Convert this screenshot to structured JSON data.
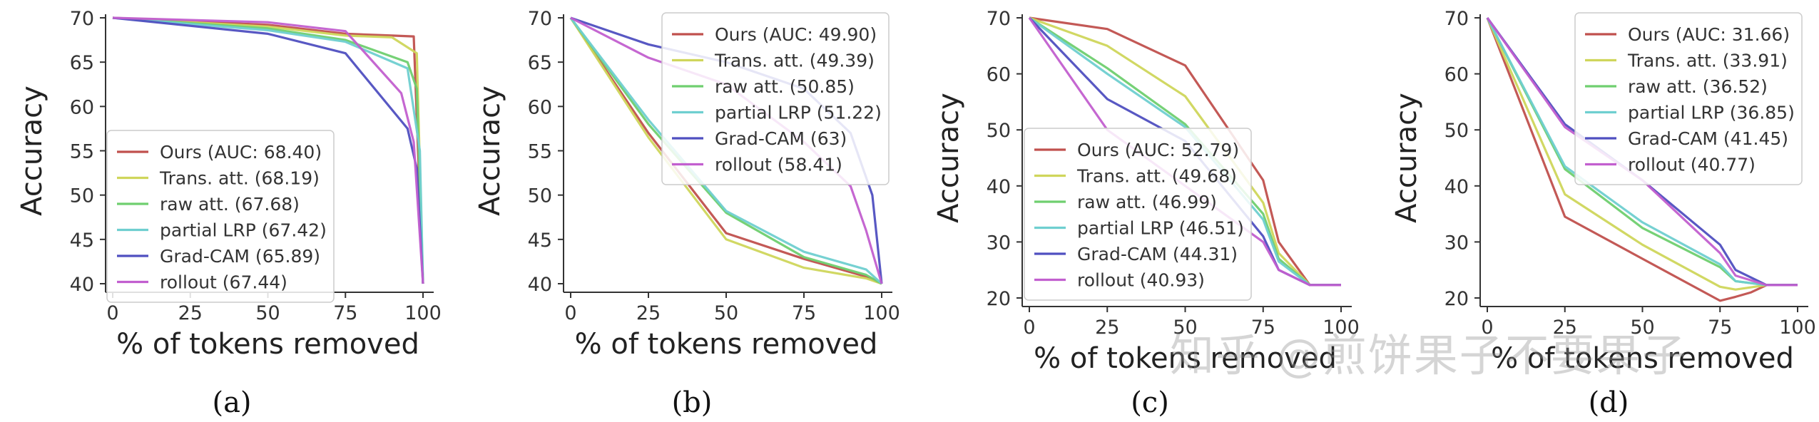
{
  "series_styles": {
    "Ours": "#c0504d",
    "Trans. att.": "#cfd65b",
    "raw att.": "#6fcf6f",
    "partial LRP": "#6fcfd0",
    "Grad-CAM": "#4f4fc0",
    "rollout": "#c25fcf"
  },
  "watermark_text": "知乎 @煎饼果子不要果子",
  "chart_data": [
    {
      "type": "line",
      "panel_label": "(a)",
      "xlabel": "% of tokens removed",
      "ylabel": "Accuracy",
      "xlim": [
        0,
        100
      ],
      "ylim": [
        40,
        70
      ],
      "xticks": [
        0,
        25,
        50,
        75,
        100
      ],
      "yticks": [
        40,
        45,
        50,
        55,
        60,
        65,
        70
      ],
      "legend_position": "bottom-left",
      "series": [
        {
          "name": "Ours",
          "label": "Ours (AUC: 68.40)",
          "x": [
            0,
            50,
            75,
            90,
            97,
            100
          ],
          "y": [
            70,
            69.2,
            68.2,
            68.0,
            67.9,
            40
          ]
        },
        {
          "name": "Trans. att.",
          "label": "Trans. att. (68.19)",
          "x": [
            0,
            50,
            75,
            90,
            98,
            100
          ],
          "y": [
            70,
            69.0,
            68.0,
            67.8,
            66.0,
            40
          ]
        },
        {
          "name": "raw att.",
          "label": "raw att. (67.68)",
          "x": [
            0,
            50,
            75,
            95,
            98,
            100
          ],
          "y": [
            70,
            68.8,
            67.5,
            65.0,
            62.0,
            40
          ]
        },
        {
          "name": "partial LRP",
          "label": "partial LRP (67.42)",
          "x": [
            0,
            50,
            75,
            95,
            99,
            100
          ],
          "y": [
            70,
            68.6,
            67.3,
            64.3,
            55.0,
            40
          ]
        },
        {
          "name": "Grad-CAM",
          "label": "Grad-CAM (65.89)",
          "x": [
            0,
            50,
            75,
            95,
            98,
            100
          ],
          "y": [
            70,
            68.2,
            66.0,
            57.5,
            53.0,
            40
          ]
        },
        {
          "name": "rollout",
          "label": "rollout (67.44)",
          "x": [
            0,
            50,
            75,
            93,
            97,
            100
          ],
          "y": [
            70,
            69.5,
            68.5,
            61.5,
            56.0,
            40
          ]
        }
      ]
    },
    {
      "type": "line",
      "panel_label": "(b)",
      "xlabel": "% of tokens removed",
      "ylabel": "Accuracy",
      "xlim": [
        0,
        100
      ],
      "ylim": [
        40,
        70
      ],
      "xticks": [
        0,
        25,
        50,
        75,
        100
      ],
      "yticks": [
        40,
        45,
        50,
        55,
        60,
        65,
        70
      ],
      "legend_position": "top-right",
      "series": [
        {
          "name": "Ours",
          "label": "Ours (AUC: 49.90)",
          "x": [
            0,
            25,
            50,
            75,
            95,
            100
          ],
          "y": [
            70,
            57,
            45.7,
            42.8,
            40.8,
            40
          ]
        },
        {
          "name": "Trans. att.",
          "label": "Trans. att. (49.39)",
          "x": [
            0,
            25,
            50,
            75,
            95,
            100
          ],
          "y": [
            70,
            56.5,
            45,
            41.8,
            40.6,
            40
          ]
        },
        {
          "name": "raw att.",
          "label": "raw att. (50.85)",
          "x": [
            0,
            25,
            50,
            75,
            95,
            100
          ],
          "y": [
            70,
            58,
            48,
            43.0,
            41.0,
            40
          ]
        },
        {
          "name": "partial LRP",
          "label": "partial LRP (51.22)",
          "x": [
            0,
            25,
            50,
            75,
            95,
            100
          ],
          "y": [
            70,
            58.5,
            48.2,
            43.6,
            41.6,
            40
          ]
        },
        {
          "name": "Grad-CAM",
          "label": "Grad-CAM (63)",
          "x": [
            0,
            25,
            50,
            75,
            90,
            97,
            100
          ],
          "y": [
            70,
            67,
            65,
            62,
            57,
            50,
            40
          ]
        },
        {
          "name": "rollout",
          "label": "rollout (58.41)",
          "x": [
            0,
            25,
            50,
            75,
            90,
            95,
            100
          ],
          "y": [
            70,
            65.5,
            62.5,
            56,
            51,
            46,
            40
          ]
        }
      ]
    },
    {
      "type": "line",
      "panel_label": "(c)",
      "xlabel": "% of tokens removed",
      "ylabel": "Accuracy",
      "xlim": [
        0,
        100
      ],
      "ylim": [
        20,
        70
      ],
      "xticks": [
        0,
        25,
        50,
        75,
        100
      ],
      "yticks": [
        20,
        30,
        40,
        50,
        60,
        70
      ],
      "legend_position": "bottom-left",
      "series": [
        {
          "name": "Ours",
          "label": "Ours (AUC: 52.79)",
          "x": [
            0,
            25,
            50,
            75,
            80,
            90,
            100
          ],
          "y": [
            70,
            68,
            61.5,
            41,
            30,
            22.3,
            22.3
          ]
        },
        {
          "name": "Trans. att.",
          "label": "Trans. att. (49.68)",
          "x": [
            0,
            25,
            50,
            75,
            80,
            90,
            100
          ],
          "y": [
            70,
            65,
            56,
            37,
            28,
            22.3,
            22.3
          ]
        },
        {
          "name": "raw att.",
          "label": "raw att. (46.99)",
          "x": [
            0,
            25,
            50,
            75,
            80,
            90,
            100
          ],
          "y": [
            70,
            61,
            51,
            35,
            27,
            22.3,
            22.3
          ]
        },
        {
          "name": "partial LRP",
          "label": "partial LRP (46.51)",
          "x": [
            0,
            25,
            50,
            75,
            80,
            90,
            100
          ],
          "y": [
            70,
            60,
            50.5,
            34,
            26.5,
            22.3,
            22.3
          ]
        },
        {
          "name": "Grad-CAM",
          "label": "Grad-CAM (44.31)",
          "x": [
            0,
            25,
            50,
            75,
            80,
            90,
            100
          ],
          "y": [
            70,
            55.5,
            48,
            31,
            25,
            22.3,
            22.3
          ]
        },
        {
          "name": "rollout",
          "label": "rollout (40.93)",
          "x": [
            0,
            25,
            50,
            75,
            80,
            90,
            100
          ],
          "y": [
            70,
            50,
            40,
            30,
            25,
            22.3,
            22.3
          ]
        }
      ]
    },
    {
      "type": "line",
      "panel_label": "(d)",
      "xlabel": "% of tokens removed",
      "ylabel": "Accuracy",
      "xlim": [
        0,
        100
      ],
      "ylim": [
        20,
        70
      ],
      "xticks": [
        0,
        25,
        50,
        75,
        100
      ],
      "yticks": [
        20,
        30,
        40,
        50,
        60,
        70
      ],
      "legend_position": "top-right",
      "series": [
        {
          "name": "Ours",
          "label": "Ours (AUC: 31.66)",
          "x": [
            0,
            25,
            50,
            75,
            80,
            85,
            90,
            100
          ],
          "y": [
            70,
            34.5,
            27,
            19.5,
            20.2,
            21,
            22.3,
            22.3
          ]
        },
        {
          "name": "Trans. att.",
          "label": "Trans. att. (33.91)",
          "x": [
            0,
            25,
            50,
            75,
            80,
            90,
            100
          ],
          "y": [
            70,
            38.5,
            29.5,
            22,
            21.5,
            22.3,
            22.3
          ]
        },
        {
          "name": "raw att.",
          "label": "raw att. (36.52)",
          "x": [
            0,
            25,
            50,
            75,
            80,
            90,
            100
          ],
          "y": [
            70,
            43,
            32.5,
            25.5,
            23,
            22.3,
            22.3
          ]
        },
        {
          "name": "partial LRP",
          "label": "partial LRP (36.85)",
          "x": [
            0,
            25,
            50,
            75,
            80,
            90,
            100
          ],
          "y": [
            70,
            43.5,
            33.5,
            26,
            23,
            22.3,
            22.3
          ]
        },
        {
          "name": "Grad-CAM",
          "label": "Grad-CAM (41.45)",
          "x": [
            0,
            25,
            50,
            75,
            80,
            90,
            100
          ],
          "y": [
            70,
            51,
            41,
            29.5,
            25,
            22.3,
            22.3
          ]
        },
        {
          "name": "rollout",
          "label": "rollout (40.77)",
          "x": [
            0,
            25,
            50,
            75,
            80,
            90,
            100
          ],
          "y": [
            70,
            50.5,
            41,
            28,
            24,
            22.3,
            22.3
          ]
        }
      ]
    }
  ]
}
